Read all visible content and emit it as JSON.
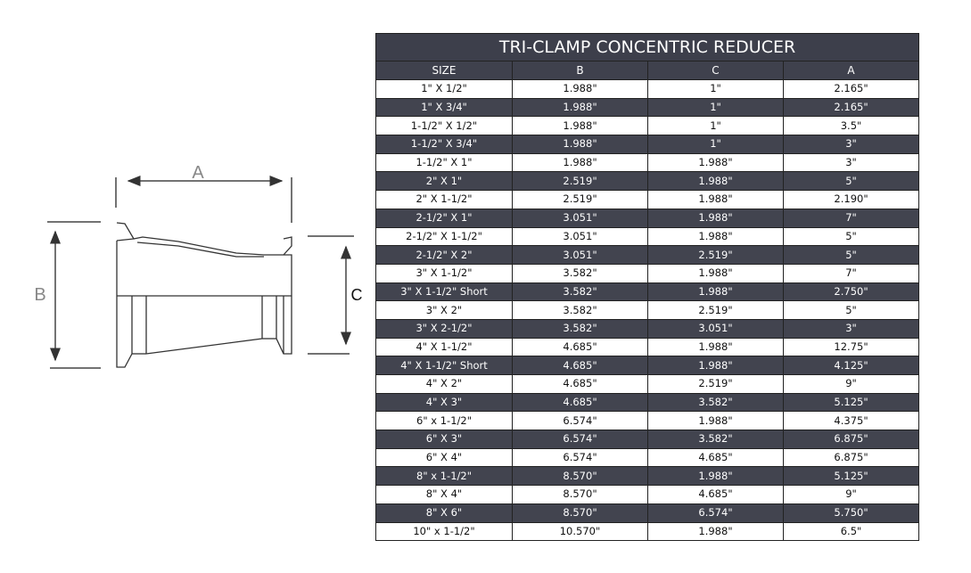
{
  "diagram": {
    "labels": {
      "a": "A",
      "b": "B",
      "c": "C"
    }
  },
  "table": {
    "title": "TRI-CLAMP CONCENTRIC REDUCER",
    "columns": [
      "SIZE",
      "B",
      "C",
      "A"
    ],
    "rows": [
      [
        "1\" X 1/2\"",
        "1.988\"",
        "1\"",
        "2.165\""
      ],
      [
        "1\" X 3/4\"",
        "1.988\"",
        "1\"",
        "2.165\""
      ],
      [
        "1-1/2\" X 1/2\"",
        "1.988\"",
        "1\"",
        "3.5\""
      ],
      [
        "1-1/2\" X 3/4\"",
        "1.988\"",
        "1\"",
        "3\""
      ],
      [
        "1-1/2\" X 1\"",
        "1.988\"",
        "1.988\"",
        "3\""
      ],
      [
        "2\" X 1\"",
        "2.519\"",
        "1.988\"",
        "5\""
      ],
      [
        "2\" X 1-1/2\"",
        "2.519\"",
        "1.988\"",
        "2.190\""
      ],
      [
        "2-1/2\" X 1\"",
        "3.051\"",
        "1.988\"",
        "7\""
      ],
      [
        "2-1/2\" X 1-1/2\"",
        "3.051\"",
        "1.988\"",
        "5\""
      ],
      [
        "2-1/2\" X 2\"",
        "3.051\"",
        "2.519\"",
        "5\""
      ],
      [
        "3\" X 1-1/2\"",
        "3.582\"",
        "1.988\"",
        "7\""
      ],
      [
        "3\" X 1-1/2\" Short",
        "3.582\"",
        "1.988\"",
        "2.750\""
      ],
      [
        "3\" X 2\"",
        "3.582\"",
        "2.519\"",
        "5\""
      ],
      [
        "3\" X 2-1/2\"",
        "3.582\"",
        "3.051\"",
        "3\""
      ],
      [
        "4\" X 1-1/2\"",
        "4.685\"",
        "1.988\"",
        "12.75\""
      ],
      [
        "4\" X 1-1/2\" Short",
        "4.685\"",
        "1.988\"",
        "4.125\""
      ],
      [
        "4\" X 2\"",
        "4.685\"",
        "2.519\"",
        "9\""
      ],
      [
        "4\" X 3\"",
        "4.685\"",
        "3.582\"",
        "5.125\""
      ],
      [
        "6\" x 1-1/2\"",
        "6.574\"",
        "1.988\"",
        "4.375\""
      ],
      [
        "6\" X 3\"",
        "6.574\"",
        "3.582\"",
        "6.875\""
      ],
      [
        "6\" X 4\"",
        "6.574\"",
        "4.685\"",
        "6.875\""
      ],
      [
        "8\" x 1-1/2\"",
        "8.570\"",
        "1.988\"",
        "5.125\""
      ],
      [
        "8\" X 4\"",
        "8.570\"",
        "4.685\"",
        "9\""
      ],
      [
        "8\" X 6\"",
        "8.570\"",
        "6.574\"",
        "5.750\""
      ],
      [
        "10\" x 1-1/2\"",
        "10.570\"",
        "1.988\"",
        "6.5\""
      ]
    ]
  },
  "colors": {
    "header_bg": "#3f414d",
    "dark_row": "#42444f"
  }
}
